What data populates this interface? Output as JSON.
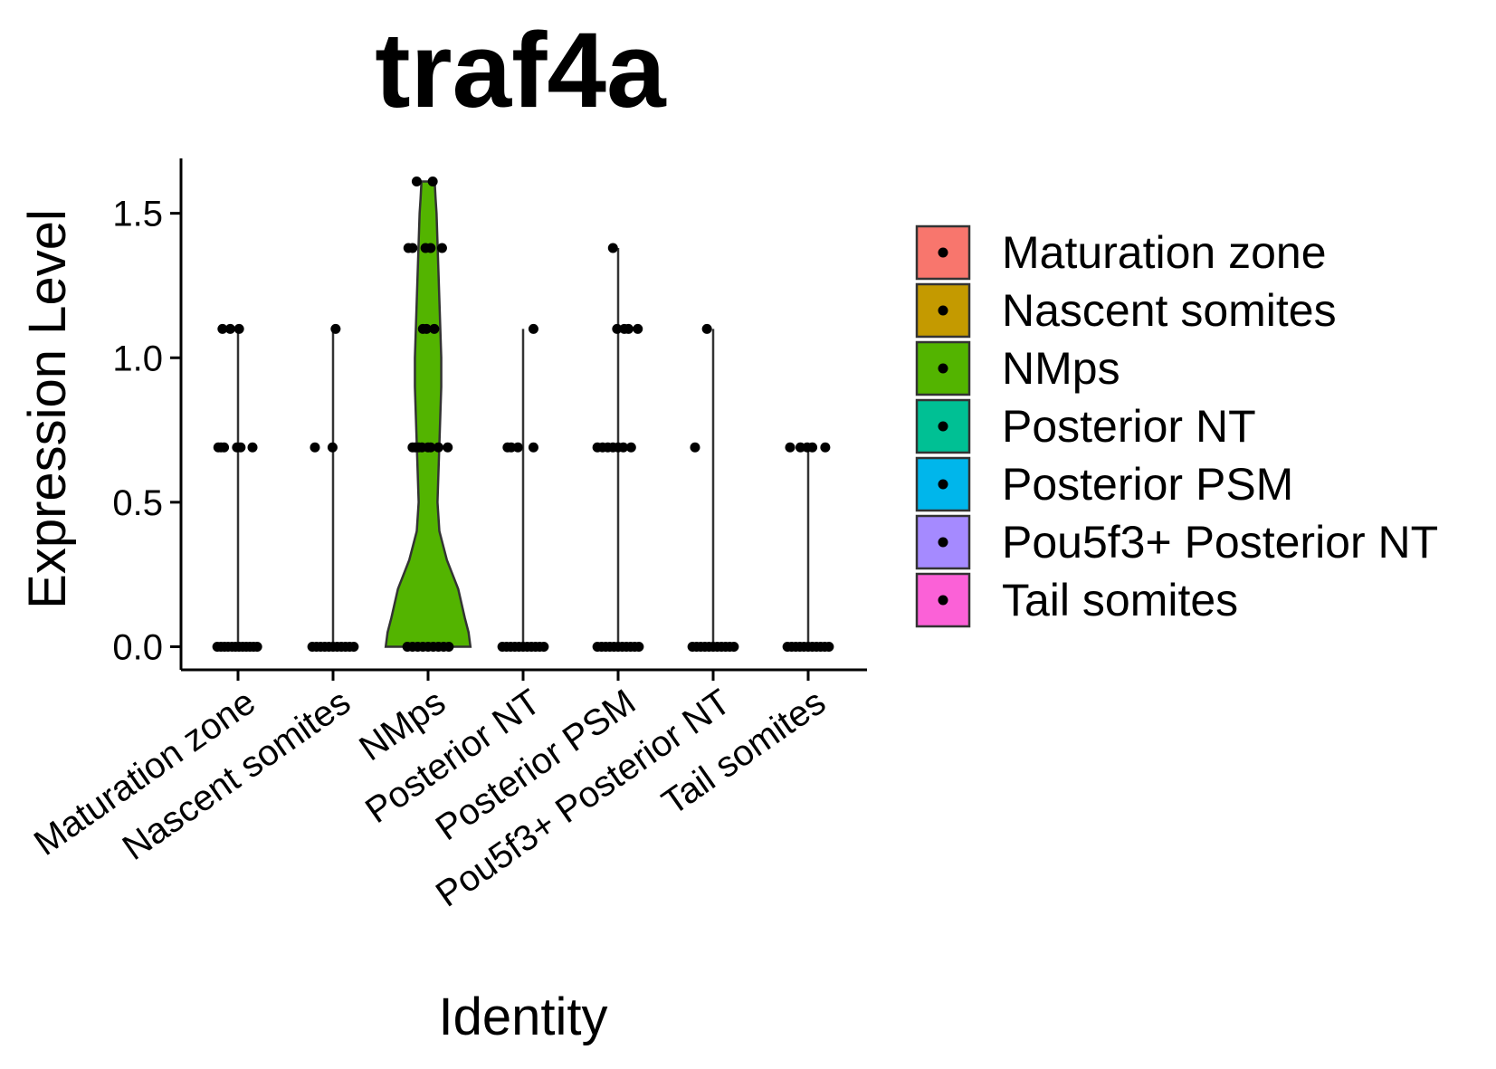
{
  "chart_data": {
    "type": "violin",
    "title": "traf4a",
    "xlabel": "Identity",
    "ylabel": "Expression Level",
    "ylim": [
      -0.08,
      1.69
    ],
    "yticks": [
      0.0,
      0.5,
      1.0,
      1.5
    ],
    "ytick_labels": [
      "0.0",
      "0.5",
      "1.0",
      "1.5"
    ],
    "legend_position": "right",
    "categories": [
      "Maturation zone",
      "Nascent somites",
      "NMps",
      "Posterior NT",
      "Posterior PSM",
      "Pou5f3+ Posterior NT",
      "Tail somites"
    ],
    "series": [
      {
        "name": "Maturation zone",
        "color": "#F8766D",
        "max": 1.1,
        "points": [
          [
            -0.3,
            1.1
          ],
          [
            -0.15,
            1.1
          ],
          [
            0.02,
            1.1
          ],
          [
            -0.38,
            0.69
          ],
          [
            -0.33,
            0.69
          ],
          [
            -0.27,
            0.69
          ],
          [
            -0.02,
            0.69
          ],
          [
            0.05,
            0.69
          ],
          [
            0.28,
            0.69
          ],
          [
            -0.4,
            0
          ],
          [
            -0.33,
            0
          ],
          [
            -0.26,
            0
          ],
          [
            -0.19,
            0
          ],
          [
            -0.12,
            0
          ],
          [
            -0.05,
            0
          ],
          [
            0.02,
            0
          ],
          [
            0.09,
            0
          ],
          [
            0.16,
            0
          ],
          [
            0.23,
            0
          ],
          [
            0.3,
            0
          ],
          [
            0.37,
            0
          ]
        ]
      },
      {
        "name": "Nascent somites",
        "color": "#C49A00",
        "max": 1.1,
        "points": [
          [
            0.05,
            1.1
          ],
          [
            -0.35,
            0.69
          ],
          [
            -0.01,
            0.69
          ],
          [
            -0.4,
            0
          ],
          [
            -0.32,
            0
          ],
          [
            -0.24,
            0
          ],
          [
            -0.16,
            0
          ],
          [
            -0.08,
            0
          ],
          [
            0.0,
            0
          ],
          [
            0.08,
            0
          ],
          [
            0.16,
            0
          ],
          [
            0.24,
            0
          ],
          [
            0.32,
            0
          ],
          [
            0.4,
            0
          ]
        ]
      },
      {
        "name": "NMps",
        "color": "#53B400",
        "max": 1.61,
        "violin": [
          [
            0.0,
            0.45
          ],
          [
            0.05,
            0.43
          ],
          [
            0.1,
            0.39
          ],
          [
            0.2,
            0.32
          ],
          [
            0.3,
            0.2
          ],
          [
            0.4,
            0.12
          ],
          [
            0.5,
            0.1
          ],
          [
            0.6,
            0.11
          ],
          [
            0.7,
            0.12
          ],
          [
            0.8,
            0.13
          ],
          [
            0.9,
            0.14
          ],
          [
            1.0,
            0.14
          ],
          [
            1.1,
            0.13
          ],
          [
            1.2,
            0.12
          ],
          [
            1.3,
            0.11
          ],
          [
            1.4,
            0.1
          ],
          [
            1.5,
            0.09
          ],
          [
            1.55,
            0.08
          ],
          [
            1.61,
            0.07
          ]
        ],
        "points": [
          [
            -0.22,
            1.61
          ],
          [
            0.09,
            1.61
          ],
          [
            -0.38,
            1.38
          ],
          [
            -0.3,
            1.38
          ],
          [
            -0.05,
            1.38
          ],
          [
            0.05,
            1.38
          ],
          [
            0.27,
            1.38
          ],
          [
            -0.1,
            1.1
          ],
          [
            -0.03,
            1.1
          ],
          [
            0.12,
            1.1
          ],
          [
            -0.3,
            0.69
          ],
          [
            -0.25,
            0.69
          ],
          [
            -0.18,
            0.69
          ],
          [
            -0.12,
            0.69
          ],
          [
            0.0,
            0.69
          ],
          [
            0.05,
            0.69
          ],
          [
            0.2,
            0.69
          ],
          [
            0.38,
            0.69
          ],
          [
            -0.4,
            0
          ],
          [
            -0.3,
            0
          ],
          [
            -0.2,
            0
          ],
          [
            -0.1,
            0
          ],
          [
            0.0,
            0
          ],
          [
            0.1,
            0
          ],
          [
            0.2,
            0
          ],
          [
            0.3,
            0
          ],
          [
            0.4,
            0
          ]
        ]
      },
      {
        "name": "Posterior NT",
        "color": "#00C094",
        "max": 1.1,
        "points": [
          [
            0.2,
            1.1
          ],
          [
            -0.3,
            0.69
          ],
          [
            -0.23,
            0.69
          ],
          [
            -0.1,
            0.69
          ],
          [
            0.2,
            0.69
          ],
          [
            -0.4,
            0
          ],
          [
            -0.32,
            0
          ],
          [
            -0.24,
            0
          ],
          [
            -0.16,
            0
          ],
          [
            -0.08,
            0
          ],
          [
            0.0,
            0
          ],
          [
            0.08,
            0
          ],
          [
            0.16,
            0
          ],
          [
            0.24,
            0
          ],
          [
            0.32,
            0
          ],
          [
            0.4,
            0
          ]
        ]
      },
      {
        "name": "Posterior PSM",
        "color": "#00B6EB",
        "max": 1.38,
        "points": [
          [
            -0.1,
            1.38
          ],
          [
            -0.02,
            1.1
          ],
          [
            0.12,
            1.1
          ],
          [
            0.2,
            1.1
          ],
          [
            0.38,
            1.1
          ],
          [
            -0.4,
            0.69
          ],
          [
            -0.3,
            0.69
          ],
          [
            -0.2,
            0.69
          ],
          [
            -0.1,
            0.69
          ],
          [
            0.0,
            0.69
          ],
          [
            0.1,
            0.69
          ],
          [
            0.25,
            0.69
          ],
          [
            -0.4,
            0
          ],
          [
            -0.32,
            0
          ],
          [
            -0.24,
            0
          ],
          [
            -0.16,
            0
          ],
          [
            -0.08,
            0
          ],
          [
            0.0,
            0
          ],
          [
            0.08,
            0
          ],
          [
            0.16,
            0
          ],
          [
            0.24,
            0
          ],
          [
            0.32,
            0
          ],
          [
            0.4,
            0
          ]
        ]
      },
      {
        "name": "Pou5f3+ Posterior NT",
        "color": "#A58AFF",
        "max": 1.1,
        "points": [
          [
            -0.12,
            1.1
          ],
          [
            -0.35,
            0.69
          ],
          [
            -0.4,
            0
          ],
          [
            -0.32,
            0
          ],
          [
            -0.24,
            0
          ],
          [
            -0.16,
            0
          ],
          [
            -0.08,
            0
          ],
          [
            0.0,
            0
          ],
          [
            0.08,
            0
          ],
          [
            0.16,
            0
          ],
          [
            0.24,
            0
          ],
          [
            0.32,
            0
          ],
          [
            0.4,
            0
          ]
        ]
      },
      {
        "name": "Tail somites",
        "color": "#FB61D7",
        "max": 0.69,
        "points": [
          [
            -0.35,
            0.69
          ],
          [
            -0.15,
            0.69
          ],
          [
            -0.02,
            0.69
          ],
          [
            0.08,
            0.69
          ],
          [
            0.33,
            0.69
          ],
          [
            -0.4,
            0
          ],
          [
            -0.32,
            0
          ],
          [
            -0.24,
            0
          ],
          [
            -0.16,
            0
          ],
          [
            -0.08,
            0
          ],
          [
            0.0,
            0
          ],
          [
            0.08,
            0
          ],
          [
            0.16,
            0
          ],
          [
            0.24,
            0
          ],
          [
            0.32,
            0
          ],
          [
            0.4,
            0
          ]
        ]
      }
    ]
  }
}
